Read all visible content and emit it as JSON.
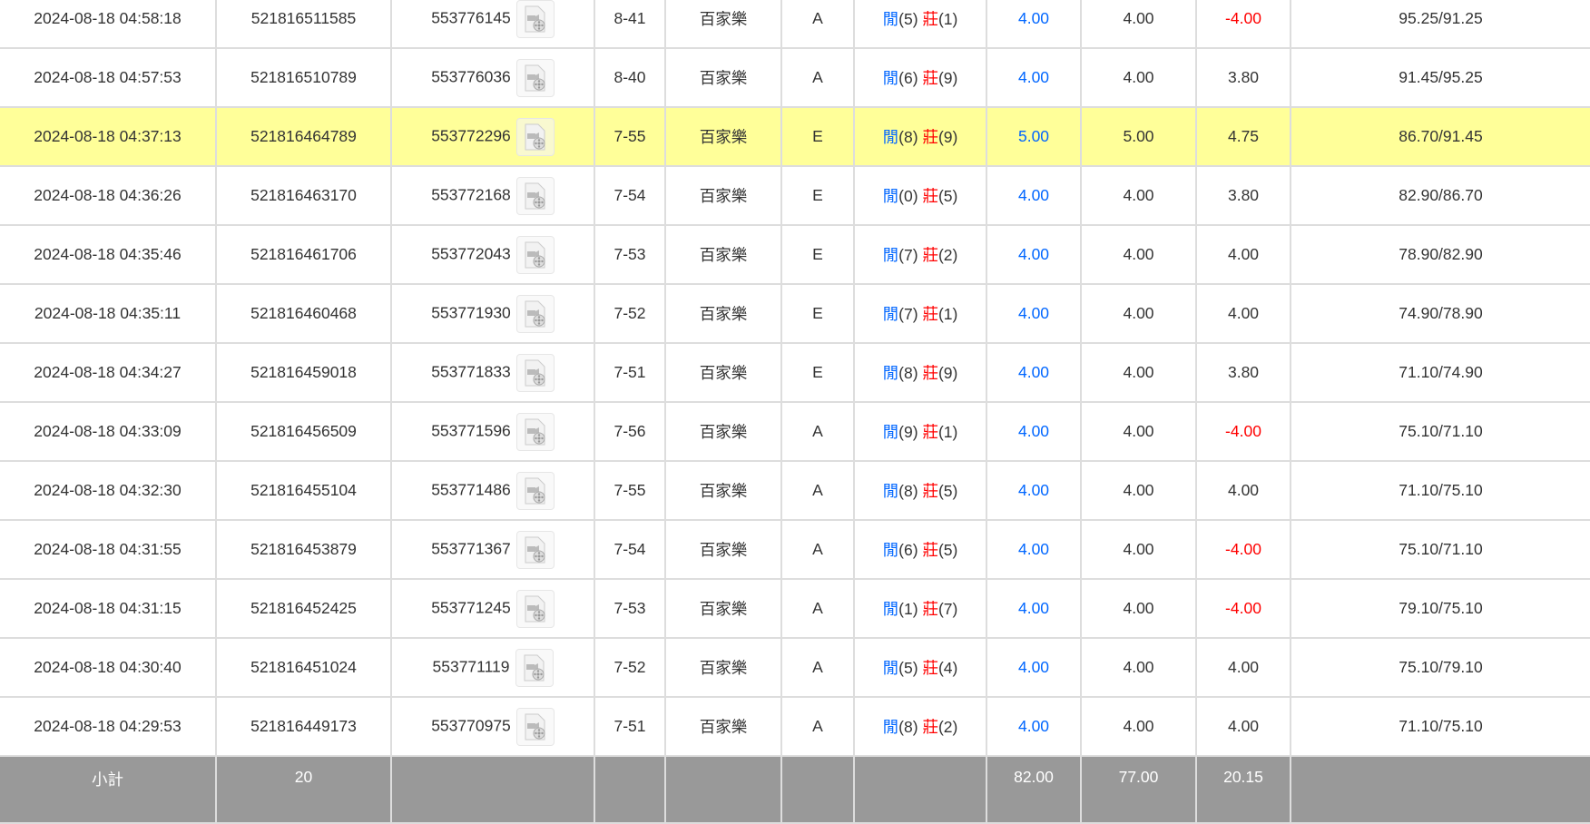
{
  "colors": {
    "highlight": "#ffff99",
    "player": "#0066ff",
    "banker": "#ff0000",
    "negative": "#ff0000",
    "footer": "#999999"
  },
  "rows": [
    {
      "time": "2024-08-18 04:58:18",
      "bet_id": "521816511585",
      "round_id": "553776145",
      "shoe": "8-41",
      "game": "百家樂",
      "table": "A",
      "p_label": "閒",
      "p_score": "(5)",
      "b_label": "莊",
      "b_score": "(1)",
      "bet": "4.00",
      "valid": "4.00",
      "win": "-4.00",
      "balance": "95.25/91.25",
      "neg": true
    },
    {
      "time": "2024-08-18 04:57:53",
      "bet_id": "521816510789",
      "round_id": "553776036",
      "shoe": "8-40",
      "game": "百家樂",
      "table": "A",
      "p_label": "閒",
      "p_score": "(6)",
      "b_label": "莊",
      "b_score": "(9)",
      "bet": "4.00",
      "valid": "4.00",
      "win": "3.80",
      "balance": "91.45/95.25",
      "neg": false
    },
    {
      "time": "2024-08-18 04:37:13",
      "bet_id": "521816464789",
      "round_id": "553772296",
      "shoe": "7-55",
      "game": "百家樂",
      "table": "E",
      "p_label": "閒",
      "p_score": "(8)",
      "b_label": "莊",
      "b_score": "(9)",
      "bet": "5.00",
      "valid": "5.00",
      "win": "4.75",
      "balance": "86.70/91.45",
      "neg": false,
      "highlighted": true
    },
    {
      "time": "2024-08-18 04:36:26",
      "bet_id": "521816463170",
      "round_id": "553772168",
      "shoe": "7-54",
      "game": "百家樂",
      "table": "E",
      "p_label": "閒",
      "p_score": "(0)",
      "b_label": "莊",
      "b_score": "(5)",
      "bet": "4.00",
      "valid": "4.00",
      "win": "3.80",
      "balance": "82.90/86.70",
      "neg": false
    },
    {
      "time": "2024-08-18 04:35:46",
      "bet_id": "521816461706",
      "round_id": "553772043",
      "shoe": "7-53",
      "game": "百家樂",
      "table": "E",
      "p_label": "閒",
      "p_score": "(7)",
      "b_label": "莊",
      "b_score": "(2)",
      "bet": "4.00",
      "valid": "4.00",
      "win": "4.00",
      "balance": "78.90/82.90",
      "neg": false
    },
    {
      "time": "2024-08-18 04:35:11",
      "bet_id": "521816460468",
      "round_id": "553771930",
      "shoe": "7-52",
      "game": "百家樂",
      "table": "E",
      "p_label": "閒",
      "p_score": "(7)",
      "b_label": "莊",
      "b_score": "(1)",
      "bet": "4.00",
      "valid": "4.00",
      "win": "4.00",
      "balance": "74.90/78.90",
      "neg": false
    },
    {
      "time": "2024-08-18 04:34:27",
      "bet_id": "521816459018",
      "round_id": "553771833",
      "shoe": "7-51",
      "game": "百家樂",
      "table": "E",
      "p_label": "閒",
      "p_score": "(8)",
      "b_label": "莊",
      "b_score": "(9)",
      "bet": "4.00",
      "valid": "4.00",
      "win": "3.80",
      "balance": "71.10/74.90",
      "neg": false
    },
    {
      "time": "2024-08-18 04:33:09",
      "bet_id": "521816456509",
      "round_id": "553771596",
      "shoe": "7-56",
      "game": "百家樂",
      "table": "A",
      "p_label": "閒",
      "p_score": "(9)",
      "b_label": "莊",
      "b_score": "(1)",
      "bet": "4.00",
      "valid": "4.00",
      "win": "-4.00",
      "balance": "75.10/71.10",
      "neg": true
    },
    {
      "time": "2024-08-18 04:32:30",
      "bet_id": "521816455104",
      "round_id": "553771486",
      "shoe": "7-55",
      "game": "百家樂",
      "table": "A",
      "p_label": "閒",
      "p_score": "(8)",
      "b_label": "莊",
      "b_score": "(5)",
      "bet": "4.00",
      "valid": "4.00",
      "win": "4.00",
      "balance": "71.10/75.10",
      "neg": false
    },
    {
      "time": "2024-08-18 04:31:55",
      "bet_id": "521816453879",
      "round_id": "553771367",
      "shoe": "7-54",
      "game": "百家樂",
      "table": "A",
      "p_label": "閒",
      "p_score": "(6)",
      "b_label": "莊",
      "b_score": "(5)",
      "bet": "4.00",
      "valid": "4.00",
      "win": "-4.00",
      "balance": "75.10/71.10",
      "neg": true
    },
    {
      "time": "2024-08-18 04:31:15",
      "bet_id": "521816452425",
      "round_id": "553771245",
      "shoe": "7-53",
      "game": "百家樂",
      "table": "A",
      "p_label": "閒",
      "p_score": "(1)",
      "b_label": "莊",
      "b_score": "(7)",
      "bet": "4.00",
      "valid": "4.00",
      "win": "-4.00",
      "balance": "79.10/75.10",
      "neg": true
    },
    {
      "time": "2024-08-18 04:30:40",
      "bet_id": "521816451024",
      "round_id": "553771119",
      "shoe": "7-52",
      "game": "百家樂",
      "table": "A",
      "p_label": "閒",
      "p_score": "(5)",
      "b_label": "莊",
      "b_score": "(4)",
      "bet": "4.00",
      "valid": "4.00",
      "win": "4.00",
      "balance": "75.10/79.10",
      "neg": false
    },
    {
      "time": "2024-08-18 04:29:53",
      "bet_id": "521816449173",
      "round_id": "553770975",
      "shoe": "7-51",
      "game": "百家樂",
      "table": "A",
      "p_label": "閒",
      "p_score": "(8)",
      "b_label": "莊",
      "b_score": "(2)",
      "bet": "4.00",
      "valid": "4.00",
      "win": "4.00",
      "balance": "71.10/75.10",
      "neg": false
    }
  ],
  "footer": {
    "label": "小計",
    "count": "20",
    "bet_total": "82.00",
    "valid_total": "77.00",
    "win_total": "20.15"
  }
}
